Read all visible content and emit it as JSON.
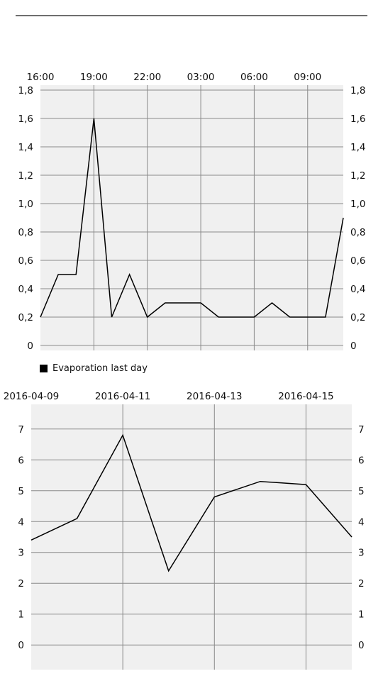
{
  "chart_data": [
    {
      "type": "line",
      "title": "",
      "xlabel": "",
      "ylabel": "",
      "x_tick_labels": [
        "16:00",
        "19:00",
        "22:00",
        "03:00",
        "06:00",
        "09:00"
      ],
      "y_tick_labels": [
        "0",
        "0,2",
        "0,4",
        "0,6",
        "0,8",
        "1,0",
        "1,2",
        "1,4",
        "1,6",
        "1,8"
      ],
      "ylim": [
        0,
        1.8
      ],
      "grid": true,
      "legend_position": "bottom-left",
      "series": [
        {
          "name": "Evaporation last day",
          "color": "#000000",
          "values": [
            0.2,
            0.5,
            0.5,
            1.6,
            0.2,
            0.5,
            0.2,
            0.3,
            0.3,
            0.3,
            0.2,
            0.2,
            0.2,
            0.3,
            0.2,
            0.2,
            0.2,
            0.9
          ]
        }
      ]
    },
    {
      "type": "line",
      "title": "",
      "xlabel": "",
      "ylabel": "",
      "x_tick_labels": [
        "2016-04-09",
        "2016-04-11",
        "2016-04-13",
        "2016-04-15"
      ],
      "y_tick_labels": [
        "0",
        "1",
        "2",
        "3",
        "4",
        "5",
        "6",
        "7"
      ],
      "ylim": [
        -0.8,
        7.8
      ],
      "grid": true,
      "series": [
        {
          "color": "#000000",
          "x": [
            "2016-04-09",
            "2016-04-10",
            "2016-04-11",
            "2016-04-12",
            "2016-04-13",
            "2016-04-14",
            "2016-04-15",
            "2016-04-16"
          ],
          "values": [
            3.4,
            4.1,
            6.8,
            2.4,
            4.8,
            5.3,
            5.2,
            3.5
          ]
        }
      ]
    }
  ]
}
